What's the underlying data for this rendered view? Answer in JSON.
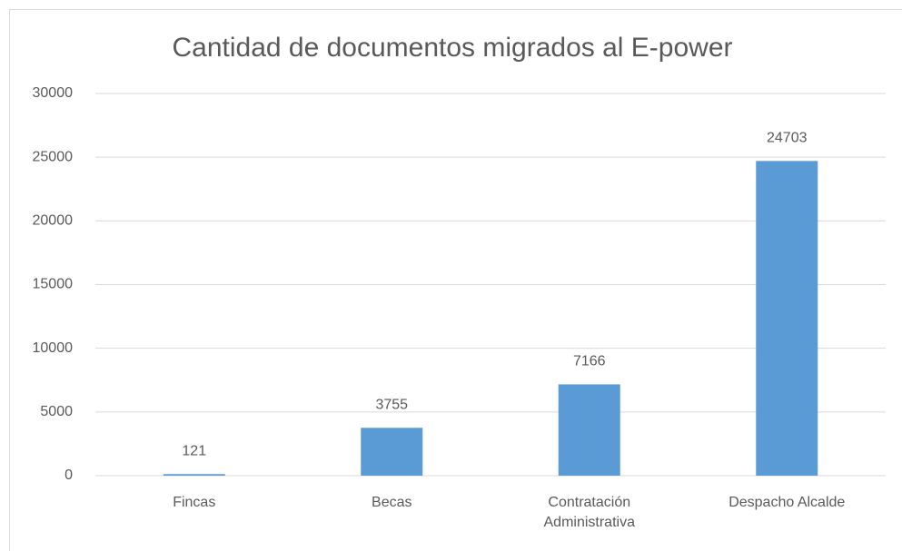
{
  "chart_data": {
    "type": "bar",
    "title": "Cantidad de documentos migrados al E-power",
    "categories": [
      "Fincas",
      "Becas",
      "Contratación Administrativa",
      "Despacho Alcalde"
    ],
    "values": [
      121,
      3755,
      7166,
      24703
    ],
    "color": "#5b9bd5",
    "ylim": [
      0,
      30000
    ],
    "yticks": [
      0,
      5000,
      10000,
      15000,
      20000,
      25000,
      30000
    ],
    "grid": true,
    "data_labels": true
  }
}
